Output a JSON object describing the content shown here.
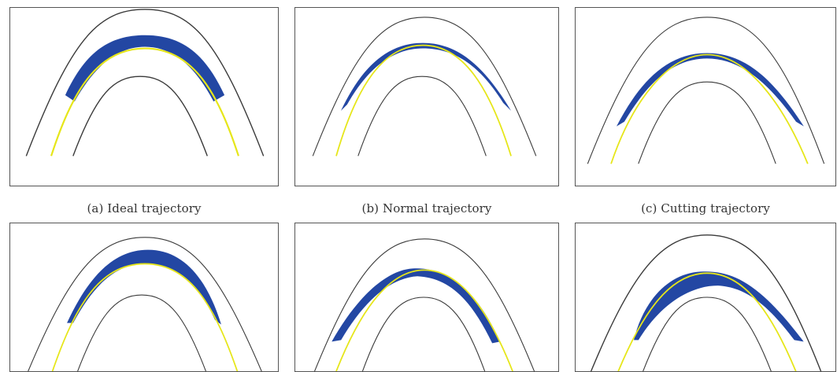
{
  "captions": {
    "a": "(a)  Ideal trajectory",
    "b": "(b)  Normal trajectory",
    "c": "(c)  Cutting trajectory"
  },
  "colors": {
    "road_edge": "#3a3a3a",
    "trajectory": "#e6e61a",
    "deviation": "#2347a3",
    "frame": "#555555"
  }
}
